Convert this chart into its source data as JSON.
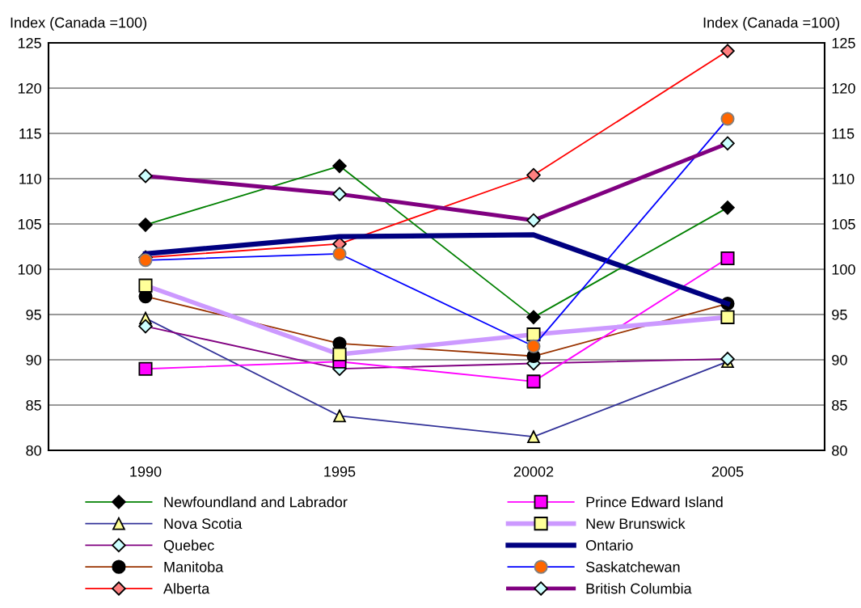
{
  "chart_data": {
    "type": "line",
    "ylabel": "Index (Canada =100)",
    "y2label": "Index (Canada =100)",
    "categories": [
      "1990",
      "1995",
      "20002",
      "2005"
    ],
    "ylim": [
      80,
      125
    ],
    "yticks": [
      80,
      85,
      90,
      95,
      100,
      105,
      110,
      115,
      120,
      125
    ],
    "y2lim": [
      80,
      125
    ],
    "y2ticks": [
      80,
      85,
      90,
      95,
      100,
      105,
      110,
      115,
      120,
      125
    ],
    "grid": "y",
    "legend": "bottom",
    "series": [
      {
        "name": "Newfoundland and Labrador",
        "color": "#008000",
        "marker": "diamond",
        "values": [
          104.9,
          111.4,
          94.7,
          106.8
        ]
      },
      {
        "name": "Nova Scotia",
        "color": "#333399",
        "marker": "triangle",
        "values": [
          94.6,
          83.8,
          81.5,
          89.8
        ]
      },
      {
        "name": "Quebec",
        "color": "#800080",
        "marker": "diamond",
        "values": [
          93.7,
          89.0,
          89.6,
          90.1
        ]
      },
      {
        "name": "Manitoba",
        "color": "#993300",
        "marker": "circle",
        "values": [
          97.0,
          91.8,
          90.4,
          96.2
        ]
      },
      {
        "name": "Alberta",
        "color": "#ff0000",
        "marker": "diamond",
        "values": [
          101.3,
          102.8,
          110.4,
          124.1
        ]
      },
      {
        "name": "Prince Edward Island",
        "color": "#ff00ff",
        "marker": "square",
        "values": [
          89.0,
          89.8,
          87.6,
          101.2
        ]
      },
      {
        "name": "New Brunswick",
        "color": "#cc99ff",
        "marker": "square",
        "values": [
          98.2,
          90.6,
          92.8,
          94.7
        ]
      },
      {
        "name": "Ontario",
        "color": "#000080",
        "marker": "none",
        "values": [
          101.7,
          103.6,
          103.8,
          96.2
        ]
      },
      {
        "name": "Saskatchewan",
        "color": "#0000ff",
        "marker": "circle",
        "values": [
          101.0,
          101.7,
          91.5,
          116.6
        ]
      },
      {
        "name": "British Columbia",
        "color": "#800080",
        "marker": "diamond",
        "values": [
          110.3,
          108.3,
          105.4,
          113.9
        ]
      }
    ]
  }
}
